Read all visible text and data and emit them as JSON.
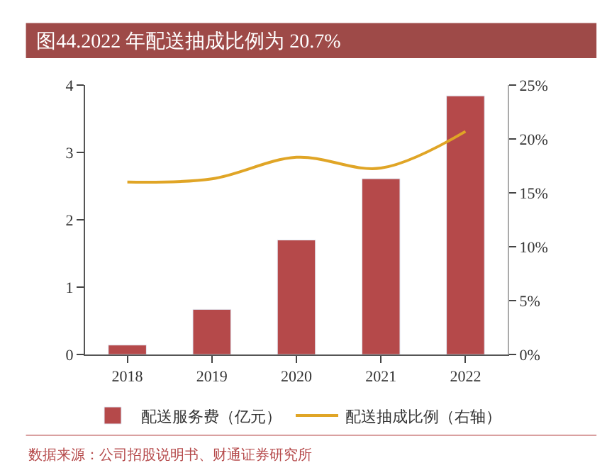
{
  "chart_data": {
    "type": "bar",
    "title": "图44.2022 年配送抽成比例为 20.7%",
    "categories": [
      "2018",
      "2019",
      "2020",
      "2021",
      "2022"
    ],
    "series": [
      {
        "name": "配送服务费（亿元）",
        "color": "#b5494a",
        "values": [
          0.14,
          0.67,
          1.7,
          2.61,
          3.84
        ]
      },
      {
        "name": "配送抽成比例（右轴）",
        "type": "line",
        "axis": "y2",
        "color": "#e0a526",
        "values": [
          16.0,
          16.3,
          18.3,
          17.3,
          20.7
        ]
      }
    ],
    "ylim": [
      0,
      4
    ],
    "yticks": [
      0,
      1,
      2,
      3,
      4
    ],
    "y2lim": [
      0,
      25
    ],
    "y2ticks": [
      {
        "value": 0,
        "label": "0%"
      },
      {
        "value": 5,
        "label": "5%"
      },
      {
        "value": 10,
        "label": "10%"
      },
      {
        "value": 15,
        "label": "15%"
      },
      {
        "value": 20,
        "label": "20%"
      },
      {
        "value": 25,
        "label": "25%"
      }
    ],
    "legend": "bottom",
    "annotations": [
      "数据来源：公司招股说明书、财通证券研究所"
    ]
  }
}
